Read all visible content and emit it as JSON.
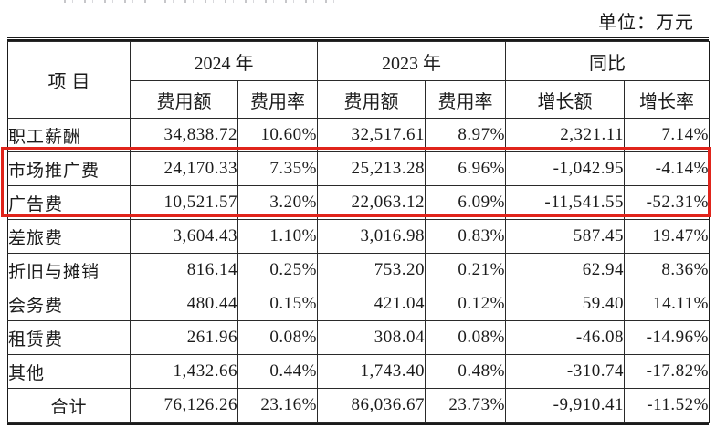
{
  "page": {
    "unit_label": "单位：万元"
  },
  "table": {
    "highlight_color": "#e0241b",
    "header": {
      "item": "项目",
      "groups": [
        {
          "label": "2024 年",
          "children": [
            "费用额",
            "费用率"
          ]
        },
        {
          "label": "2023 年",
          "children": [
            "费用额",
            "费用率"
          ]
        },
        {
          "label": "同比",
          "children": [
            "增长额",
            "增长率"
          ]
        }
      ]
    },
    "rows": [
      {
        "item": "职工薪酬",
        "amount_2024": "34,838.72",
        "rate_2024": "10.60%",
        "amount_2023": "32,517.61",
        "rate_2023": "8.97%",
        "growth_amount": "2,321.11",
        "growth_rate": "7.14%",
        "highlighted": false,
        "is_total": false
      },
      {
        "item": "市场推广费",
        "amount_2024": "24,170.33",
        "rate_2024": "7.35%",
        "amount_2023": "25,213.28",
        "rate_2023": "6.96%",
        "growth_amount": "-1,042.95",
        "growth_rate": "-4.14%",
        "highlighted": true,
        "is_total": false
      },
      {
        "item": "广告费",
        "amount_2024": "10,521.57",
        "rate_2024": "3.20%",
        "amount_2023": "22,063.12",
        "rate_2023": "6.09%",
        "growth_amount": "-11,541.55",
        "growth_rate": "-52.31%",
        "highlighted": true,
        "is_total": false
      },
      {
        "item": "差旅费",
        "amount_2024": "3,604.43",
        "rate_2024": "1.10%",
        "amount_2023": "3,016.98",
        "rate_2023": "0.83%",
        "growth_amount": "587.45",
        "growth_rate": "19.47%",
        "highlighted": false,
        "is_total": false
      },
      {
        "item": "折旧与摊销",
        "amount_2024": "816.14",
        "rate_2024": "0.25%",
        "amount_2023": "753.20",
        "rate_2023": "0.21%",
        "growth_amount": "62.94",
        "growth_rate": "8.36%",
        "highlighted": false,
        "is_total": false
      },
      {
        "item": "会务费",
        "amount_2024": "480.44",
        "rate_2024": "0.15%",
        "amount_2023": "421.04",
        "rate_2023": "0.12%",
        "growth_amount": "59.40",
        "growth_rate": "14.11%",
        "highlighted": false,
        "is_total": false
      },
      {
        "item": "租赁费",
        "amount_2024": "261.96",
        "rate_2024": "0.08%",
        "amount_2023": "308.04",
        "rate_2023": "0.08%",
        "growth_amount": "-46.08",
        "growth_rate": "-14.96%",
        "highlighted": false,
        "is_total": false
      },
      {
        "item": "其他",
        "amount_2024": "1,432.66",
        "rate_2024": "0.44%",
        "amount_2023": "1,743.40",
        "rate_2023": "0.48%",
        "growth_amount": "-310.74",
        "growth_rate": "-17.82%",
        "highlighted": false,
        "is_total": false
      },
      {
        "item": "合计",
        "amount_2024": "76,126.26",
        "rate_2024": "23.16%",
        "amount_2023": "86,036.67",
        "rate_2023": "23.73%",
        "growth_amount": "-9,910.41",
        "growth_rate": "-11.52%",
        "highlighted": false,
        "is_total": true
      }
    ]
  }
}
